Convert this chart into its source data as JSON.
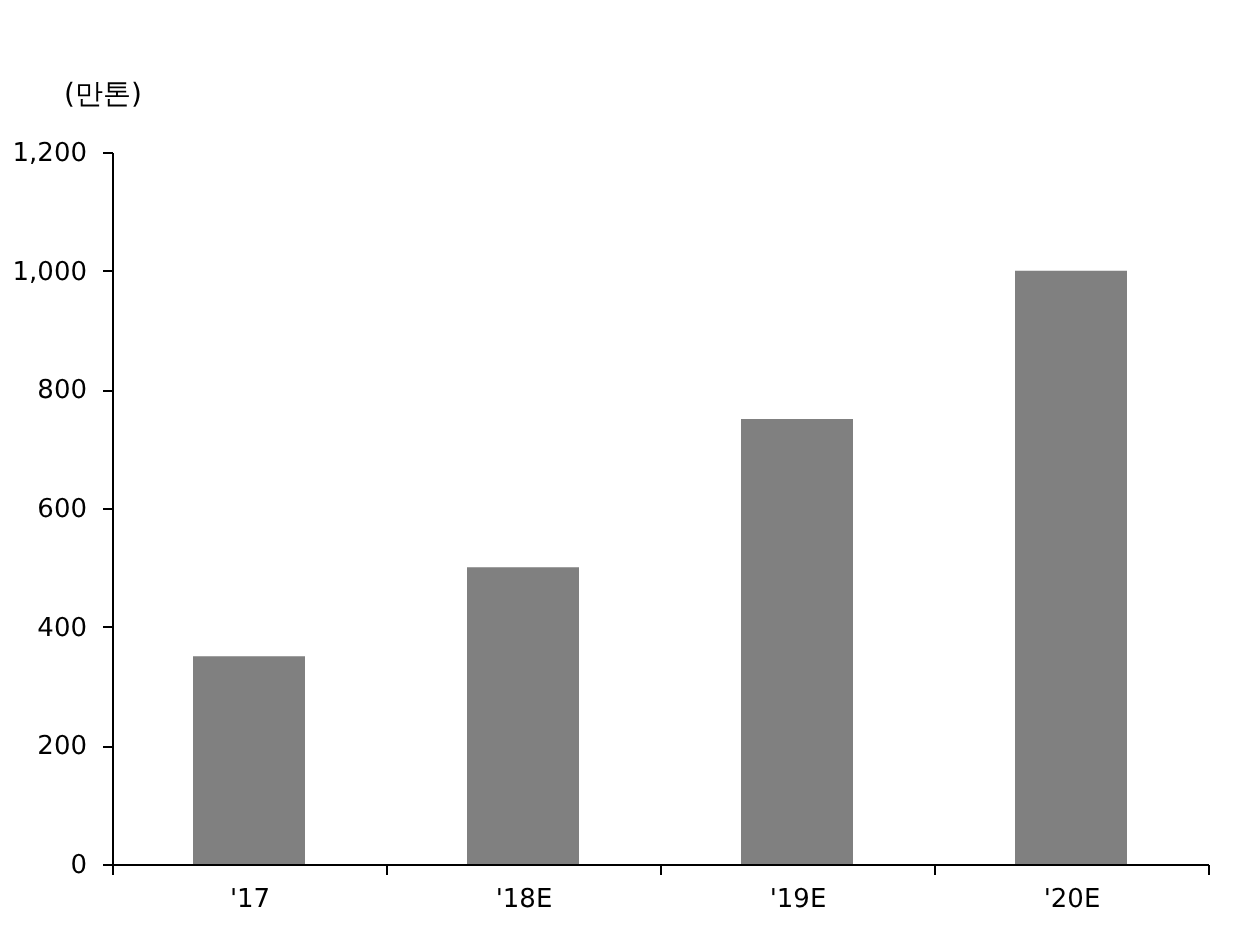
{
  "chart_data": {
    "type": "bar",
    "ylabel": "(만톤)",
    "categories": [
      "'17",
      "'18E",
      "'19E",
      "'20E"
    ],
    "values": [
      350,
      500,
      750,
      1000
    ],
    "color": "#808080",
    "ylim": [
      0,
      1200
    ],
    "yticks": [
      0,
      200,
      400,
      600,
      800,
      {
        "value": 1000,
        "label": "1,000"
      },
      {
        "value": 1200,
        "label": "1,200"
      }
    ],
    "grid": false
  }
}
